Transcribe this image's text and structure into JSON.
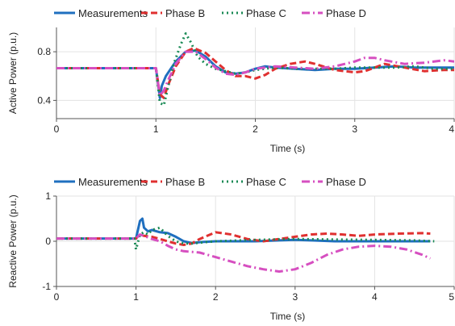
{
  "chart_data": [
    {
      "type": "line",
      "xlabel": "Time (s)",
      "ylabel": "Active Power (p.u.)",
      "xlim": [
        0,
        4
      ],
      "ylim": [
        0.25,
        1.0
      ],
      "xticks": [
        0,
        1,
        2,
        3,
        4
      ],
      "xtick_labels": [
        "0",
        "1",
        "2",
        "3",
        "4"
      ],
      "yticks": [
        0.4,
        0.8
      ],
      "ytick_labels": [
        "0.4",
        "0.8"
      ],
      "grid": true,
      "legend": "top",
      "series": [
        {
          "name": "Measurements",
          "color": "#1f6fbf",
          "dash": "solid",
          "x": [
            0,
            1.0,
            1.04,
            1.06,
            1.1,
            1.15,
            1.2,
            1.3,
            1.4,
            1.5,
            1.6,
            1.7,
            1.8,
            1.9,
            2.0,
            2.1,
            2.2,
            2.4,
            2.6,
            2.8,
            3.0,
            3.2,
            3.4,
            3.6,
            3.8,
            4.0
          ],
          "y": [
            0.665,
            0.665,
            0.42,
            0.52,
            0.6,
            0.66,
            0.72,
            0.8,
            0.81,
            0.76,
            0.68,
            0.63,
            0.62,
            0.63,
            0.66,
            0.68,
            0.67,
            0.66,
            0.65,
            0.66,
            0.66,
            0.67,
            0.68,
            0.67,
            0.67,
            0.67
          ]
        },
        {
          "name": "Phase B",
          "color": "#e03030",
          "dash": "8,4",
          "x": [
            0,
            1.0,
            1.04,
            1.08,
            1.12,
            1.2,
            1.3,
            1.38,
            1.5,
            1.6,
            1.7,
            1.8,
            1.9,
            2.0,
            2.1,
            2.2,
            2.35,
            2.5,
            2.6,
            2.8,
            3.0,
            3.1,
            3.3,
            3.5,
            3.7,
            3.9,
            4.0
          ],
          "y": [
            0.665,
            0.665,
            0.45,
            0.42,
            0.52,
            0.68,
            0.8,
            0.83,
            0.79,
            0.72,
            0.65,
            0.6,
            0.6,
            0.58,
            0.61,
            0.66,
            0.7,
            0.72,
            0.7,
            0.65,
            0.63,
            0.64,
            0.7,
            0.67,
            0.64,
            0.65,
            0.65
          ]
        },
        {
          "name": "Phase C",
          "color": "#1a8a55",
          "dash": "2,4",
          "x": [
            0,
            1.0,
            1.04,
            1.08,
            1.12,
            1.18,
            1.25,
            1.3,
            1.35,
            1.42,
            1.5,
            1.6,
            1.7,
            1.8,
            1.9,
            2.0,
            2.2,
            2.4,
            2.6,
            2.8,
            3.0,
            3.2,
            3.4,
            3.6,
            3.8,
            4.0
          ],
          "y": [
            0.665,
            0.665,
            0.38,
            0.36,
            0.5,
            0.7,
            0.86,
            0.95,
            0.88,
            0.76,
            0.7,
            0.66,
            0.64,
            0.62,
            0.63,
            0.65,
            0.67,
            0.66,
            0.66,
            0.66,
            0.67,
            0.67,
            0.67,
            0.68,
            0.66,
            0.66
          ]
        },
        {
          "name": "Phase D",
          "color": "#d64fc0",
          "dash": "10,4,2,4",
          "x": [
            0,
            1.0,
            1.04,
            1.08,
            1.12,
            1.2,
            1.3,
            1.4,
            1.5,
            1.6,
            1.7,
            1.8,
            1.9,
            2.0,
            2.2,
            2.4,
            2.6,
            2.8,
            3.0,
            3.1,
            3.2,
            3.3,
            3.5,
            3.7,
            3.9,
            4.0
          ],
          "y": [
            0.665,
            0.665,
            0.44,
            0.48,
            0.56,
            0.7,
            0.8,
            0.8,
            0.74,
            0.67,
            0.62,
            0.61,
            0.63,
            0.66,
            0.68,
            0.67,
            0.66,
            0.68,
            0.72,
            0.75,
            0.75,
            0.73,
            0.7,
            0.71,
            0.73,
            0.72
          ]
        }
      ]
    },
    {
      "type": "line",
      "xlabel": "Time (s)",
      "ylabel": "Reactive Power (p.u.)",
      "xlim": [
        0,
        5
      ],
      "ylim": [
        -1,
        1
      ],
      "xticks": [
        0,
        1,
        2,
        3,
        4,
        5
      ],
      "xtick_labels": [
        "0",
        "1",
        "2",
        "3",
        "4",
        "5"
      ],
      "yticks": [
        -1,
        0,
        1
      ],
      "ytick_labels": [
        "-1",
        "0",
        "1"
      ],
      "grid": true,
      "legend": "top",
      "series": [
        {
          "name": "Measurements",
          "color": "#1f6fbf",
          "dash": "solid",
          "x": [
            0,
            1.0,
            1.05,
            1.08,
            1.1,
            1.15,
            1.2,
            1.3,
            1.4,
            1.5,
            1.6,
            1.7,
            1.8,
            2.0,
            2.2,
            2.5,
            2.8,
            3.0,
            3.2,
            3.5,
            4.0,
            4.5,
            4.7
          ],
          "y": [
            0.06,
            0.06,
            0.45,
            0.5,
            0.3,
            0.22,
            0.25,
            0.2,
            0.18,
            0.1,
            0.0,
            -0.04,
            -0.02,
            0.0,
            0.0,
            0.0,
            0.02,
            0.03,
            0.02,
            0.0,
            0.0,
            0.0,
            0.0
          ]
        },
        {
          "name": "Phase B",
          "color": "#e03030",
          "dash": "8,4",
          "x": [
            0,
            1.0,
            1.05,
            1.1,
            1.2,
            1.3,
            1.4,
            1.5,
            1.6,
            1.7,
            1.8,
            2.0,
            2.2,
            2.4,
            2.6,
            2.8,
            3.0,
            3.2,
            3.4,
            3.6,
            3.8,
            4.0,
            4.3,
            4.6,
            4.7
          ],
          "y": [
            0.06,
            0.06,
            0.15,
            0.12,
            0.1,
            0.05,
            0.0,
            -0.05,
            -0.08,
            -0.05,
            0.05,
            0.2,
            0.15,
            0.05,
            0.0,
            0.05,
            0.1,
            0.15,
            0.17,
            0.15,
            0.12,
            0.15,
            0.17,
            0.18,
            0.17
          ]
        },
        {
          "name": "Phase C",
          "color": "#1a8a55",
          "dash": "2,4",
          "x": [
            0,
            0.98,
            1.0,
            1.05,
            1.1,
            1.15,
            1.2,
            1.3,
            1.4,
            1.5,
            1.6,
            1.7,
            1.8,
            2.0,
            2.5,
            3.0,
            3.5,
            4.0,
            4.5,
            4.75
          ],
          "y": [
            0.06,
            0.06,
            -0.18,
            0.15,
            0.2,
            0.15,
            0.25,
            0.3,
            0.12,
            0.0,
            -0.05,
            -0.05,
            -0.03,
            0.0,
            0.03,
            0.05,
            0.04,
            0.03,
            0.02,
            0.0
          ]
        },
        {
          "name": "Phase D",
          "color": "#d64fc0",
          "dash": "10,4,2,4",
          "x": [
            0,
            1.0,
            1.05,
            1.1,
            1.2,
            1.3,
            1.4,
            1.5,
            1.6,
            1.8,
            2.0,
            2.2,
            2.4,
            2.6,
            2.8,
            3.0,
            3.2,
            3.4,
            3.6,
            3.8,
            4.0,
            4.2,
            4.4,
            4.6,
            4.7
          ],
          "y": [
            0.06,
            0.06,
            0.15,
            0.12,
            0.05,
            0.0,
            -0.1,
            -0.18,
            -0.22,
            -0.25,
            -0.35,
            -0.45,
            -0.55,
            -0.62,
            -0.67,
            -0.62,
            -0.48,
            -0.3,
            -0.18,
            -0.12,
            -0.1,
            -0.12,
            -0.18,
            -0.3,
            -0.38
          ]
        }
      ]
    }
  ]
}
